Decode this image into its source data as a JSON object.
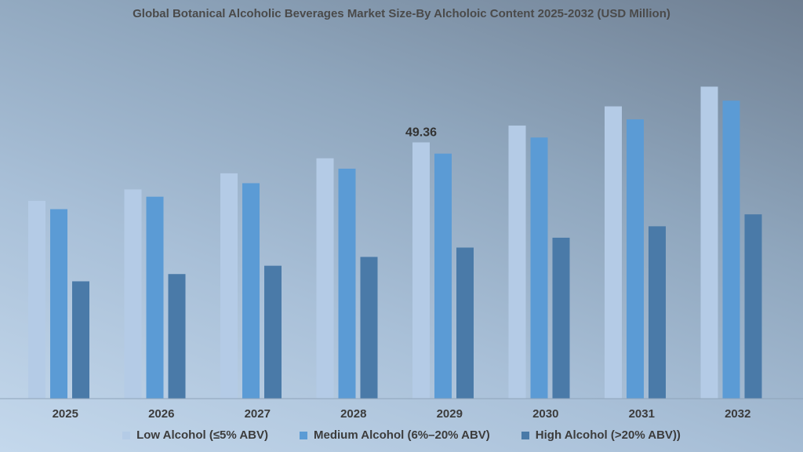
{
  "chart_data": {
    "type": "bar",
    "title": "Global Botanical Alcoholic Beverages Market Size-By Alcholoic Content 2025-2032 (USD Million)",
    "categories": [
      "2025",
      "2026",
      "2027",
      "2028",
      "2029",
      "2030",
      "2031",
      "2032"
    ],
    "series": [
      {
        "name": "Low Alcohol (≤5% ABV)",
        "color": "#b4cbe6",
        "values": [
          38.1,
          40.3,
          43.4,
          46.3,
          49.36,
          52.6,
          56.3,
          60.1
        ]
      },
      {
        "name": "Medium Alcohol (6%–20% ABV)",
        "color": "#5b9bd5",
        "values": [
          36.5,
          38.9,
          41.5,
          44.3,
          47.2,
          50.3,
          53.8,
          57.4
        ]
      },
      {
        "name": "High Alcohol (>20% ABV))",
        "color": "#4a7aa8",
        "values": [
          22.6,
          24.0,
          25.6,
          27.3,
          29.1,
          31.0,
          33.2,
          35.5
        ]
      }
    ],
    "data_labels": [
      {
        "series": 0,
        "index": 4,
        "text": "49.36"
      }
    ],
    "ylim": [
      0,
      65
    ],
    "xlabel": "",
    "ylabel": "",
    "grid": false,
    "y_axis_visible": false,
    "legend_position": "bottom"
  }
}
